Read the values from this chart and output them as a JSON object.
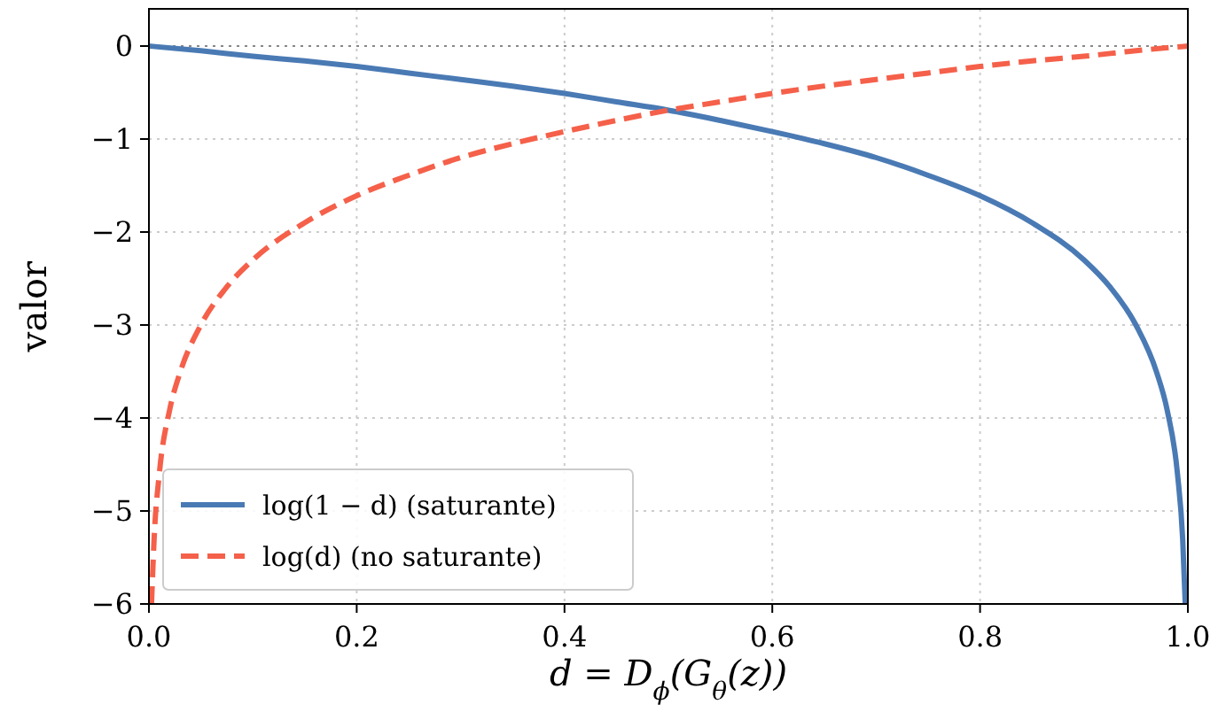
{
  "chart_data": {
    "type": "line",
    "xlabel": "d = D$_{ϕ}$(G$_{θ}$(z))",
    "ylabel": "valor",
    "xlim": [
      0,
      1
    ],
    "ylim": [
      -6,
      0.4
    ],
    "xticks": [
      {
        "value": 0,
        "label": "0.0"
      },
      {
        "value": 0.2,
        "label": "0.2"
      },
      {
        "value": 0.4,
        "label": "0.4"
      },
      {
        "value": 0.6,
        "label": "0.6"
      },
      {
        "value": 0.8,
        "label": "0.8"
      },
      {
        "value": 1,
        "label": "1.0"
      }
    ],
    "yticks": [
      {
        "value": -6,
        "label": "−6"
      },
      {
        "value": -5,
        "label": "−5"
      },
      {
        "value": -4,
        "label": "−4"
      },
      {
        "value": -3,
        "label": "−3"
      },
      {
        "value": -2,
        "label": "−2"
      },
      {
        "value": -1,
        "label": "−1"
      },
      0
    ],
    "grid": true,
    "legend": "bottom left",
    "ref_lines": [
      {
        "axis": "y",
        "value": 0,
        "color": "#888888",
        "line_style": "dotted"
      }
    ],
    "series": [
      {
        "name": "log(1 − d) (saturante)",
        "color": "#4a7ab4",
        "line_style": "solid",
        "x": [
          0,
          0.05,
          0.1,
          0.15,
          0.2,
          0.25,
          0.3,
          0.35,
          0.4,
          0.45,
          0.5,
          0.55,
          0.6,
          0.65,
          0.7,
          0.75,
          0.8,
          0.85,
          0.9,
          0.925,
          0.95,
          0.97,
          0.98,
          0.99,
          0.995,
          0.9975
        ],
        "values": [
          0,
          -0.05,
          -0.11,
          -0.16,
          -0.22,
          -0.29,
          -0.36,
          -0.43,
          -0.51,
          -0.6,
          -0.69,
          -0.8,
          -0.92,
          -1.05,
          -1.2,
          -1.39,
          -1.61,
          -1.9,
          -2.3,
          -2.59,
          -3.0,
          -3.51,
          -3.91,
          -4.6,
          -5.3,
          -6
        ]
      },
      {
        "name": "log(d) (no saturante)",
        "color": "#f5604a",
        "line_style": "dashed",
        "x": [
          0.0025,
          0.005,
          0.01,
          0.02,
          0.03,
          0.05,
          0.075,
          0.1,
          0.15,
          0.2,
          0.25,
          0.3,
          0.35,
          0.4,
          0.45,
          0.5,
          0.55,
          0.6,
          0.65,
          0.7,
          0.75,
          0.8,
          0.85,
          0.9,
          0.95,
          1
        ],
        "values": [
          -6,
          -5.3,
          -4.6,
          -3.91,
          -3.51,
          -3.0,
          -2.59,
          -2.3,
          -1.9,
          -1.61,
          -1.39,
          -1.2,
          -1.05,
          -0.92,
          -0.8,
          -0.69,
          -0.6,
          -0.51,
          -0.43,
          -0.36,
          -0.29,
          -0.22,
          -0.16,
          -0.11,
          -0.05,
          0
        ]
      }
    ]
  }
}
